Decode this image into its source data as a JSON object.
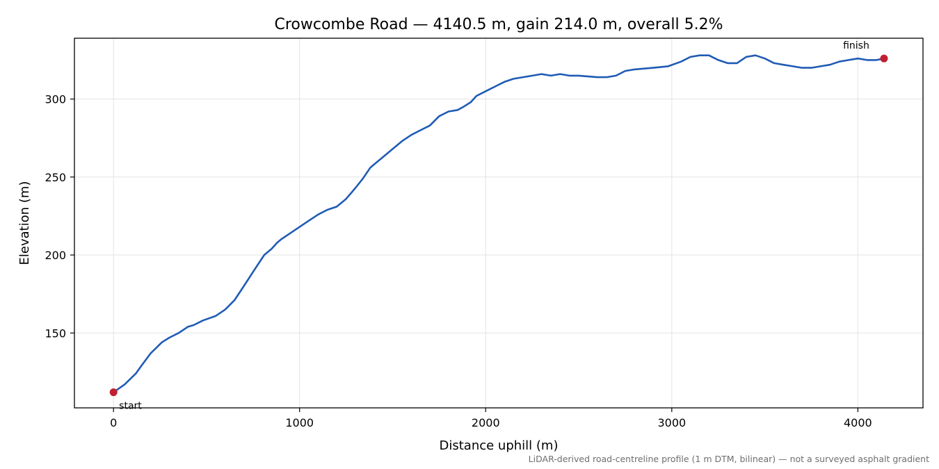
{
  "chart_data": {
    "type": "line",
    "title": "Crowcombe Road — 4140.5 m, gain 214.0 m, overall 5.2%",
    "xlabel": "Distance uphill (m)",
    "ylabel": "Elevation (m)",
    "xlim": [
      -210,
      4350
    ],
    "ylim": [
      102,
      339
    ],
    "xticks": [
      0,
      1000,
      2000,
      3000,
      4000
    ],
    "xtick_labels": [
      "0",
      "1000",
      "2000",
      "3000",
      "4000"
    ],
    "yticks": [
      150,
      200,
      250,
      300
    ],
    "ytick_labels": [
      "150",
      "200",
      "250",
      "300"
    ],
    "grid": true,
    "line_color": "#1f5bb5",
    "marker_color": "#c21f30",
    "series": [
      {
        "x": [
          0,
          60,
          120,
          150,
          200,
          260,
          300,
          350,
          400,
          430,
          480,
          550,
          600,
          650,
          700,
          760,
          810,
          850,
          880,
          900,
          950,
          1000,
          1050,
          1100,
          1150,
          1200,
          1250,
          1300,
          1340,
          1380,
          1400,
          1420,
          1450,
          1500,
          1550,
          1600,
          1650,
          1700,
          1750,
          1800,
          1850,
          1880,
          1920,
          1950,
          2000,
          2050,
          2100,
          2150,
          2200,
          2250,
          2300,
          2350,
          2400,
          2450,
          2500,
          2600,
          2650,
          2700,
          2750,
          2800,
          2900,
          2980,
          3050,
          3100,
          3150,
          3200,
          3250,
          3300,
          3350,
          3400,
          3450,
          3500,
          3550,
          3600,
          3650,
          3700,
          3750,
          3800,
          3850,
          3900,
          3950,
          4000,
          4050,
          4100,
          4140.5
        ],
        "y": [
          112,
          117,
          124,
          129,
          137,
          144,
          147,
          150,
          154,
          155,
          158,
          161,
          165,
          171,
          180,
          191,
          200,
          204,
          208,
          210,
          214,
          218,
          222,
          226,
          229,
          231,
          236,
          243,
          249,
          256,
          258,
          260,
          263,
          268,
          273,
          277,
          280,
          283,
          289,
          292,
          293,
          295,
          298,
          302,
          305,
          308,
          311,
          313,
          314,
          315,
          316,
          315,
          316,
          315,
          315,
          314,
          314,
          315,
          318,
          319,
          320,
          321,
          324,
          327,
          328,
          328,
          325,
          323,
          323,
          327,
          328,
          326,
          323,
          322,
          321,
          320,
          320,
          321,
          322,
          324,
          325,
          326,
          325,
          325,
          326
        ]
      }
    ],
    "annotations": [
      {
        "label": "start",
        "x": 0,
        "y": 112,
        "anchor": "below-right"
      },
      {
        "label": "finish",
        "x": 4140.5,
        "y": 326,
        "anchor": "above-left"
      }
    ],
    "footnote": "LiDAR-derived road-centreline profile (1 m DTM, bilinear) — not a surveyed asphalt gradient"
  }
}
